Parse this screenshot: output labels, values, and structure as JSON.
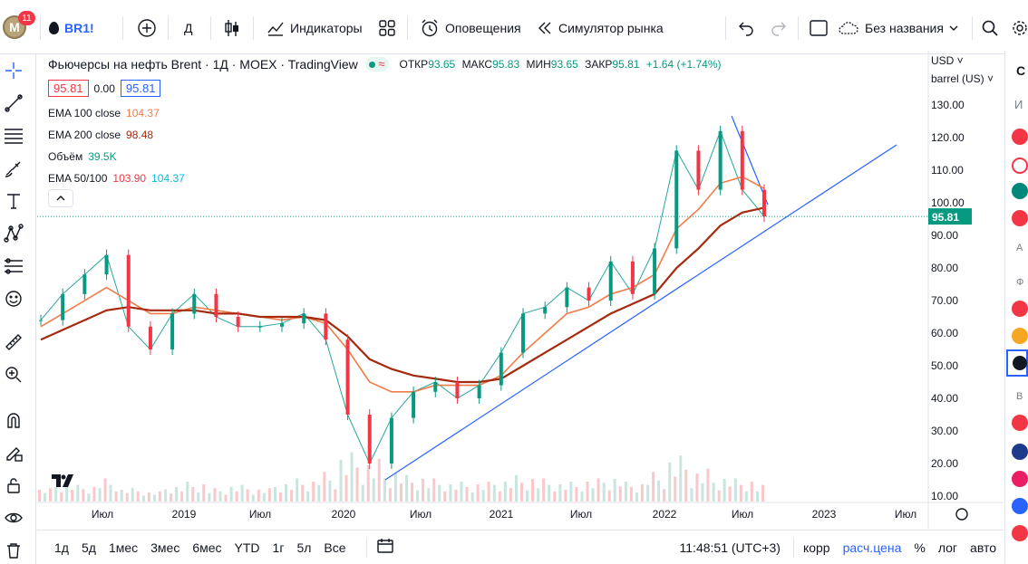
{
  "topbar": {
    "avatar_letter": "M",
    "notifications": "11",
    "symbol": "BR1!",
    "interval": "Д",
    "indicators": "Индикаторы",
    "alerts": "Оповещения",
    "replay": "Симулятор рынка",
    "layout_name": "Без названия"
  },
  "legend": {
    "title": "Фьючерсы на нефть Brent · 1Д · MOEX · TradingView",
    "ohlc": {
      "open_label": "ОТКР",
      "open": "93.65",
      "high_label": "МАКС",
      "high": "95.83",
      "low_label": "МИН",
      "low": "93.65",
      "close_label": "ЗАКР",
      "close": "95.81",
      "change": "+1.64 (+1.74%)"
    },
    "bid": "95.81",
    "spread": "0.00",
    "ask": "95.81",
    "indicators": [
      {
        "name": "EMA 100 close",
        "values": [
          "104.37"
        ],
        "colors": [
          "#f07c4a"
        ]
      },
      {
        "name": "EMA 200 close",
        "values": [
          "98.48"
        ],
        "colors": [
          "#a52a0f"
        ]
      },
      {
        "name": "Объём",
        "values": [
          "39.5K"
        ],
        "colors": [
          "#089981"
        ]
      },
      {
        "name": "EMA 50/100",
        "values": [
          "103.90",
          "104.37"
        ],
        "colors": [
          "#f23645",
          "#00bcd4"
        ]
      }
    ]
  },
  "price_axis": {
    "currency": "USD",
    "unit": "barrel (US)",
    "ticks": [
      "130.00",
      "120.00",
      "110.00",
      "100.00",
      "90.00",
      "80.00",
      "70.00",
      "60.00",
      "50.00",
      "40.00",
      "30.00",
      "20.00",
      "10.00"
    ],
    "last_price": "95.81"
  },
  "time_axis": [
    "Июл",
    "2019",
    "Июл",
    "2020",
    "Июл",
    "2021",
    "Июл",
    "2022",
    "Июл",
    "2023",
    "Июл"
  ],
  "bottombar": {
    "ranges": [
      "1д",
      "5д",
      "1мес",
      "3мес",
      "6мес",
      "YTD",
      "1г",
      "5л",
      "Все"
    ],
    "clock": "11:48:51 (UTC+3)",
    "options": [
      "корр",
      "расч.цена",
      "%",
      "лог",
      "авто"
    ]
  },
  "chart_data": {
    "type": "line",
    "title": "Фьючерсы на нефть Brent · 1Д · MOEX · TradingView",
    "ylim": [
      10,
      135
    ],
    "x": [
      "2018-05",
      "2018-07",
      "2018-09",
      "2018-10",
      "2018-12",
      "2019-01",
      "2019-03",
      "2019-05",
      "2019-06",
      "2019-08",
      "2019-09",
      "2019-11",
      "2020-01",
      "2020-02",
      "2020-03",
      "2020-04",
      "2020-05",
      "2020-06",
      "2020-08",
      "2020-10",
      "2020-11",
      "2021-01",
      "2021-03",
      "2021-05",
      "2021-07",
      "2021-08",
      "2021-10",
      "2021-12",
      "2022-01",
      "2022-03",
      "2022-04",
      "2022-06",
      "2022-07",
      "2022-08"
    ],
    "series": [
      {
        "name": "Brent",
        "values": [
          64,
          72,
          78,
          84,
          62,
          55,
          66,
          72,
          65,
          62,
          62,
          63,
          66,
          58,
          35,
          20,
          34,
          42,
          45,
          40,
          44,
          54,
          66,
          68,
          74,
          70,
          82,
          72,
          86,
          116,
          104,
          122,
          104,
          95.8
        ]
      },
      {
        "name": "EMA 100 close",
        "values": [
          62,
          66,
          70,
          74,
          70,
          66,
          66,
          68,
          67,
          66,
          65,
          64,
          65,
          63,
          55,
          45,
          42,
          42,
          44,
          44,
          44,
          47,
          54,
          60,
          66,
          68,
          72,
          74,
          78,
          92,
          98,
          106,
          108,
          104.4
        ]
      },
      {
        "name": "EMA 200 close",
        "values": [
          58,
          61,
          64,
          67,
          68,
          67,
          67,
          67,
          66,
          66,
          65,
          65,
          65,
          64,
          59,
          52,
          49,
          47,
          46,
          45,
          45,
          46,
          50,
          54,
          58,
          62,
          66,
          69,
          72,
          80,
          86,
          93,
          97,
          98.5
        ]
      }
    ]
  }
}
